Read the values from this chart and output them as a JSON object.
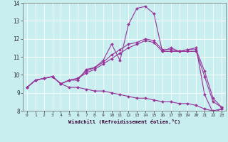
{
  "xlabel": "Windchill (Refroidissement éolien,°C)",
  "xlim": [
    -0.5,
    23.5
  ],
  "ylim": [
    8,
    14
  ],
  "yticks": [
    8,
    9,
    10,
    11,
    12,
    13,
    14
  ],
  "xticks": [
    0,
    1,
    2,
    3,
    4,
    5,
    6,
    7,
    8,
    9,
    10,
    11,
    12,
    13,
    14,
    15,
    16,
    17,
    18,
    19,
    20,
    21,
    22,
    23
  ],
  "bg_color": "#c8eef0",
  "grid_color": "#ffffff",
  "line_color": "#993399",
  "line_width": 0.8,
  "marker": "D",
  "marker_size": 2,
  "lines": [
    {
      "x": [
        0,
        1,
        2,
        3,
        4,
        5,
        6,
        7,
        8,
        9,
        10,
        11,
        12,
        13,
        14,
        15,
        16,
        17,
        18,
        19,
        20,
        21,
        22,
        23
      ],
      "y": [
        9.3,
        9.7,
        9.8,
        9.9,
        9.5,
        9.7,
        9.7,
        10.3,
        10.4,
        10.8,
        11.7,
        10.8,
        12.8,
        13.7,
        13.8,
        13.4,
        11.3,
        11.5,
        11.3,
        11.4,
        11.5,
        8.9,
        7.9,
        8.1
      ]
    },
    {
      "x": [
        0,
        1,
        2,
        3,
        4,
        5,
        6,
        7,
        8,
        9,
        10,
        11,
        12,
        13,
        14,
        15,
        16,
        17,
        18,
        19,
        20,
        21,
        22,
        23
      ],
      "y": [
        9.3,
        9.7,
        9.8,
        9.9,
        9.5,
        9.7,
        9.8,
        10.1,
        10.3,
        10.6,
        10.9,
        11.2,
        11.5,
        11.7,
        11.9,
        11.8,
        11.3,
        11.3,
        11.3,
        11.3,
        11.3,
        9.9,
        8.5,
        8.2
      ]
    },
    {
      "x": [
        0,
        1,
        2,
        3,
        4,
        5,
        6,
        7,
        8,
        9,
        10,
        11,
        12,
        13,
        14,
        15,
        16,
        17,
        18,
        19,
        20,
        21,
        22,
        23
      ],
      "y": [
        9.3,
        9.7,
        9.8,
        9.9,
        9.5,
        9.7,
        9.8,
        10.2,
        10.4,
        10.7,
        11.1,
        11.4,
        11.7,
        11.8,
        12.0,
        11.9,
        11.4,
        11.4,
        11.3,
        11.4,
        11.4,
        10.2,
        8.7,
        8.2
      ]
    },
    {
      "x": [
        0,
        1,
        2,
        3,
        4,
        5,
        6,
        7,
        8,
        9,
        10,
        11,
        12,
        13,
        14,
        15,
        16,
        17,
        18,
        19,
        20,
        21,
        22,
        23
      ],
      "y": [
        9.3,
        9.7,
        9.8,
        9.9,
        9.5,
        9.3,
        9.3,
        9.2,
        9.1,
        9.1,
        9.0,
        8.9,
        8.8,
        8.7,
        8.7,
        8.6,
        8.5,
        8.5,
        8.4,
        8.4,
        8.3,
        8.1,
        8.0,
        8.1
      ]
    }
  ]
}
